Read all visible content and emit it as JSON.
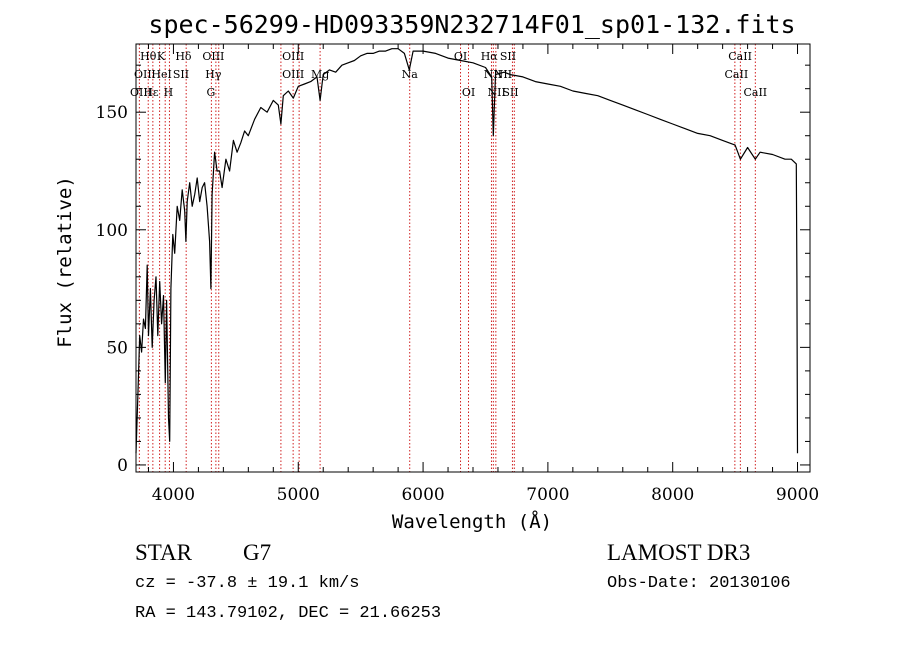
{
  "chart_data": {
    "type": "line",
    "title": "spec-56299-HD093359N232714F01_sp01-132.fits",
    "xlabel": "Wavelength (Å)",
    "ylabel": "Flux (relative)",
    "xlim": [
      3700,
      9100
    ],
    "ylim": [
      -3,
      179
    ],
    "xticks": [
      4000,
      5000,
      6000,
      7000,
      8000,
      9000
    ],
    "yticks": [
      0,
      50,
      100,
      150
    ],
    "series": [
      {
        "name": "flux",
        "points": [
          [
            3700,
            5
          ],
          [
            3715,
            30
          ],
          [
            3730,
            55
          ],
          [
            3745,
            48
          ],
          [
            3760,
            62
          ],
          [
            3775,
            58
          ],
          [
            3790,
            85
          ],
          [
            3800,
            55
          ],
          [
            3815,
            75
          ],
          [
            3830,
            50
          ],
          [
            3845,
            70
          ],
          [
            3860,
            80
          ],
          [
            3875,
            55
          ],
          [
            3890,
            78
          ],
          [
            3905,
            60
          ],
          [
            3920,
            72
          ],
          [
            3935,
            35
          ],
          [
            3945,
            70
          ],
          [
            3960,
            20
          ],
          [
            3970,
            10
          ],
          [
            3980,
            75
          ],
          [
            3995,
            98
          ],
          [
            4010,
            90
          ],
          [
            4030,
            110
          ],
          [
            4050,
            104
          ],
          [
            4070,
            117
          ],
          [
            4090,
            108
          ],
          [
            4100,
            95
          ],
          [
            4110,
            112
          ],
          [
            4130,
            120
          ],
          [
            4150,
            110
          ],
          [
            4170,
            115
          ],
          [
            4190,
            122
          ],
          [
            4210,
            112
          ],
          [
            4230,
            118
          ],
          [
            4250,
            120
          ],
          [
            4270,
            110
          ],
          [
            4290,
            95
          ],
          [
            4300,
            75
          ],
          [
            4310,
            115
          ],
          [
            4330,
            133
          ],
          [
            4350,
            125
          ],
          [
            4370,
            125
          ],
          [
            4390,
            118
          ],
          [
            4420,
            130
          ],
          [
            4450,
            125
          ],
          [
            4480,
            138
          ],
          [
            4510,
            133
          ],
          [
            4540,
            137
          ],
          [
            4570,
            142
          ],
          [
            4600,
            140
          ],
          [
            4650,
            147
          ],
          [
            4700,
            152
          ],
          [
            4750,
            150
          ],
          [
            4800,
            155
          ],
          [
            4840,
            153
          ],
          [
            4861,
            145
          ],
          [
            4880,
            157
          ],
          [
            4920,
            159
          ],
          [
            4960,
            156
          ],
          [
            5000,
            161
          ],
          [
            5050,
            162
          ],
          [
            5100,
            163
          ],
          [
            5150,
            165
          ],
          [
            5175,
            155
          ],
          [
            5200,
            166
          ],
          [
            5250,
            168
          ],
          [
            5300,
            167
          ],
          [
            5350,
            170
          ],
          [
            5400,
            171
          ],
          [
            5450,
            172
          ],
          [
            5500,
            174
          ],
          [
            5550,
            175
          ],
          [
            5600,
            175
          ],
          [
            5650,
            176
          ],
          [
            5700,
            176
          ],
          [
            5750,
            177
          ],
          [
            5800,
            177
          ],
          [
            5850,
            175
          ],
          [
            5890,
            168
          ],
          [
            5920,
            176
          ],
          [
            6000,
            176
          ],
          [
            6100,
            175
          ],
          [
            6200,
            173
          ],
          [
            6300,
            172
          ],
          [
            6400,
            171
          ],
          [
            6500,
            169
          ],
          [
            6550,
            165
          ],
          [
            6563,
            140
          ],
          [
            6580,
            166
          ],
          [
            6650,
            167
          ],
          [
            6700,
            166
          ],
          [
            6800,
            165
          ],
          [
            6900,
            163
          ],
          [
            7000,
            162
          ],
          [
            7100,
            161
          ],
          [
            7200,
            159
          ],
          [
            7300,
            158
          ],
          [
            7400,
            157
          ],
          [
            7500,
            155
          ],
          [
            7600,
            153
          ],
          [
            7700,
            151
          ],
          [
            7800,
            149
          ],
          [
            7900,
            147
          ],
          [
            8000,
            145
          ],
          [
            8100,
            143
          ],
          [
            8200,
            141
          ],
          [
            8300,
            140
          ],
          [
            8400,
            138
          ],
          [
            8500,
            136
          ],
          [
            8542,
            130
          ],
          [
            8600,
            135
          ],
          [
            8662,
            130
          ],
          [
            8700,
            133
          ],
          [
            8800,
            132
          ],
          [
            8900,
            130
          ],
          [
            8950,
            130
          ],
          [
            8990,
            128
          ],
          [
            8995,
            80
          ],
          [
            9000,
            5
          ]
        ]
      }
    ],
    "lines": [
      {
        "label": "Hθ",
        "x": 3798,
        "row": 0,
        "label_x": 3798
      },
      {
        "label": "K",
        "x": 3934,
        "row": 0,
        "label_x": 3900
      },
      {
        "label": "Hδ",
        "x": 4102,
        "row": 0,
        "label_x": 4080
      },
      {
        "label": "OIII",
        "x": 4363,
        "row": 0,
        "label_x": 4320
      },
      {
        "label": "OIII",
        "x": 4959,
        "row": 0,
        "label_x": 4959
      },
      {
        "label": "OI",
        "x": 6300,
        "row": 0,
        "label_x": 6300
      },
      {
        "label": "Hα",
        "x": 6563,
        "row": 0,
        "label_x": 6530
      },
      {
        "label": "SII",
        "x": 6716,
        "row": 0,
        "label_x": 6680
      },
      {
        "label": "CaII",
        "x": 8498,
        "row": 0,
        "label_x": 8540
      },
      {
        "label": "OII",
        "x": 3727,
        "row": 1,
        "label_x": 3755
      },
      {
        "label": "HeI",
        "x": 3889,
        "row": 1,
        "label_x": 3905
      },
      {
        "label": "SII",
        "x": 4072,
        "row": 1,
        "label_x": 4060
      },
      {
        "label": "Hγ",
        "x": 4340,
        "row": 1,
        "label_x": 4320
      },
      {
        "label": "OIII",
        "x": 5007,
        "row": 1,
        "label_x": 4959
      },
      {
        "label": "Na",
        "x": 5893,
        "row": 1,
        "label_x": 5893
      },
      {
        "label": "Mg",
        "x": 5175,
        "row": 1,
        "label_x": 5175
      },
      {
        "label": "NII",
        "x": 6548,
        "row": 1,
        "label_x": 6560
      },
      {
        "label": "NII",
        "x": 6583,
        "row": 1,
        "label_x": 6640
      },
      {
        "label": "CaII",
        "x": 8542,
        "row": 1,
        "label_x": 8510
      },
      {
        "label": "OIII",
        "x": 3727,
        "row": 2,
        "label_x": 3740
      },
      {
        "label": "Hε",
        "x": 3970,
        "row": 2,
        "label_x": 3820
      },
      {
        "label": "H",
        "x": 3968,
        "row": 2,
        "label_x": 3960
      },
      {
        "label": "G",
        "x": 4304,
        "row": 2,
        "label_x": 4300
      },
      {
        "label": "OI",
        "x": 6364,
        "row": 2,
        "label_x": 6364
      },
      {
        "label": "NII",
        "x": 6583,
        "row": 2,
        "label_x": 6590
      },
      {
        "label": "SII",
        "x": 6731,
        "row": 2,
        "label_x": 6700
      },
      {
        "label": "CaII",
        "x": 8662,
        "row": 2,
        "label_x": 8662
      }
    ],
    "line_positions": [
      3727,
      3798,
      3835,
      3889,
      3934,
      3968,
      4102,
      4304,
      4340,
      4363,
      4861,
      4959,
      5007,
      5175,
      5893,
      6300,
      6364,
      6548,
      6563,
      6583,
      6716,
      6731,
      8498,
      8542,
      8662
    ],
    "line_color": "#d02020"
  },
  "info": {
    "object_class": "STAR",
    "subclass": "G7",
    "survey": "LAMOST DR3",
    "velocity": "cz = -37.8 ± 19.1 km/s",
    "obs_date": "Obs-Date: 20130106",
    "coords": "RA = 143.79102, DEC =  21.66253"
  }
}
